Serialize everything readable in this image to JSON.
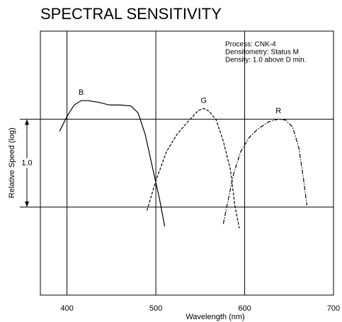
{
  "chart_data": {
    "type": "line",
    "title": "SPECTRAL SENSITIVITY",
    "xlabel": "Wavelength (nm)",
    "ylabel": "Relative Speed (log)",
    "annotations": [
      "Process: CNK-4",
      "Densitometry: Status M",
      "Density: 1.0 above D min."
    ],
    "scale_bar_label": "1.0",
    "xlim": [
      370,
      700
    ],
    "xticks": [
      400,
      500,
      600,
      700
    ],
    "ylim": [
      -1,
      2
    ],
    "yticks": [
      0,
      1
    ],
    "grid": true,
    "series": [
      {
        "name": "B",
        "color": "#000000",
        "style": "solid",
        "x": [
          391.5,
          400,
          408,
          416,
          424,
          436,
          448,
          460,
          472,
          480,
          488,
          496,
          504,
          510
        ],
        "values": [
          0.86,
          1.03,
          1.16,
          1.21,
          1.21,
          1.19,
          1.16,
          1.16,
          1.15,
          1.07,
          0.83,
          0.46,
          0.1,
          -0.22
        ]
      },
      {
        "name": "G",
        "color": "#000000",
        "style": "dashed",
        "x": [
          490,
          500,
          512,
          524,
          536,
          548,
          554,
          560,
          568,
          576,
          584,
          589,
          594
        ],
        "values": [
          -0.04,
          0.3,
          0.63,
          0.83,
          0.97,
          1.1,
          1.12,
          1.09,
          0.99,
          0.75,
          0.42,
          0.02,
          -0.24
        ]
      },
      {
        "name": "R",
        "color": "#000000",
        "style": "dashdot",
        "x": [
          576,
          581,
          587.5,
          595.5,
          605,
          615,
          627,
          638,
          646,
          654,
          661,
          666,
          670
        ],
        "values": [
          -0.19,
          0.06,
          0.38,
          0.63,
          0.79,
          0.89,
          0.97,
          1.0,
          0.99,
          0.91,
          0.67,
          0.34,
          0.02
        ]
      }
    ]
  }
}
